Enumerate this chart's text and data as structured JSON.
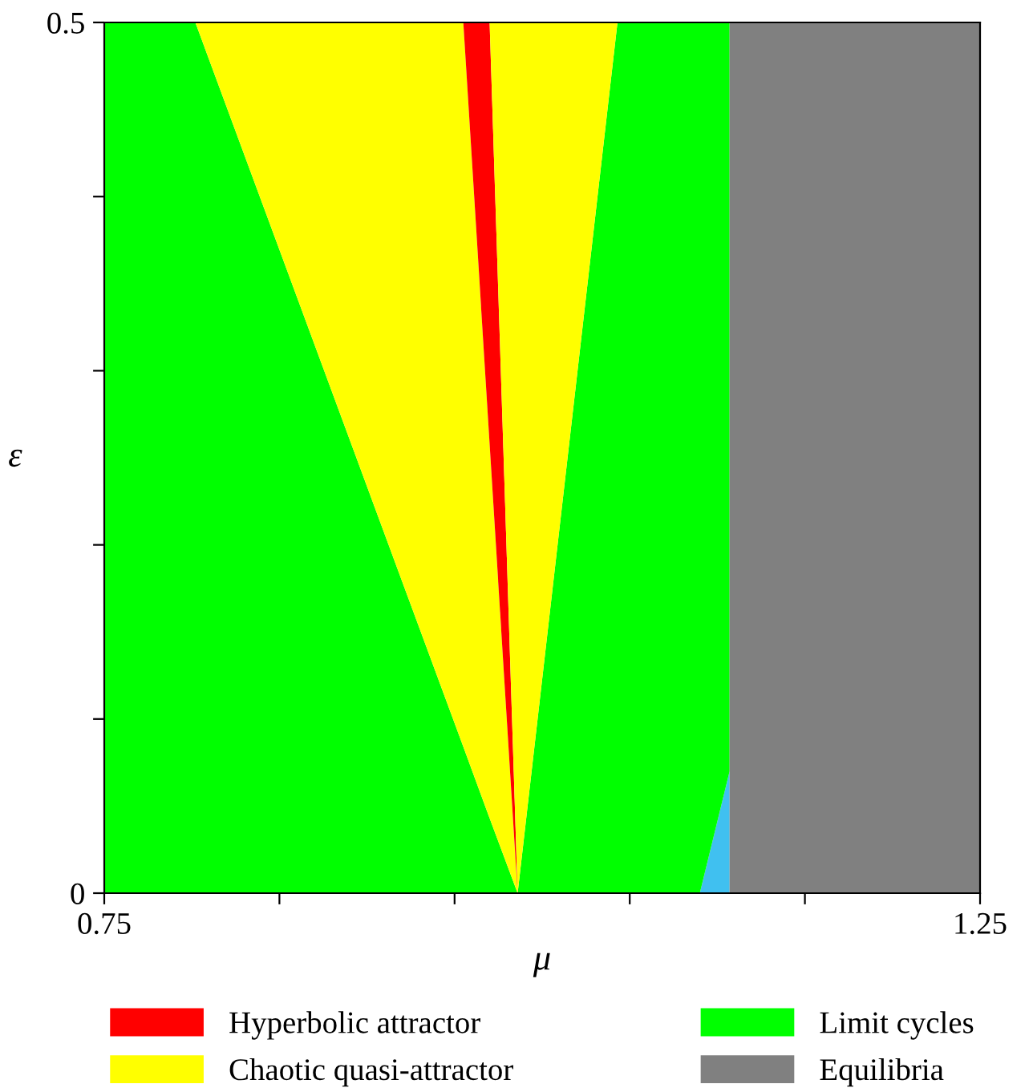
{
  "chart_data": {
    "type": "area",
    "stacked": true,
    "xlabel": "μ",
    "ylabel": "ε",
    "xlim": [
      0.75,
      1.25
    ],
    "ylim": [
      0,
      0.5
    ],
    "xticks": [
      0.75,
      {
        "value": 0.85,
        "label": null
      },
      {
        "value": 0.95,
        "label": null
      },
      {
        "value": 1.05,
        "label": null
      },
      {
        "value": 1.15,
        "label": null
      },
      1.25
    ],
    "yticks": [
      {
        "value": 0,
        "label": "0"
      },
      {
        "value": 0.1,
        "label": null
      },
      {
        "value": 0.2,
        "label": null
      },
      {
        "value": 0.3,
        "label": null
      },
      {
        "value": 0.4,
        "label": null
      },
      0.5
    ],
    "grid": false,
    "legend": "bottom",
    "x": [
      0.75,
      0.802,
      0.955,
      0.97,
      0.986,
      1.043,
      1.09,
      1.107
    ],
    "series": [
      {
        "color": "#40c0f0",
        "values": [
          null,
          null,
          null,
          null,
          null,
          null,
          0,
          0.07
        ]
      },
      {
        "name": "Limit cycles",
        "color": "#00ff00",
        "values": [
          0.5,
          0.5,
          0.084,
          0.043,
          0,
          0.5,
          0.5,
          0.43
        ]
      },
      {
        "name": "Chaotic quasi-attractor",
        "color": "#ffff00",
        "values": [
          null,
          0,
          0.416,
          0.215,
          0,
          null,
          null,
          null
        ]
      },
      {
        "name": "Hyperbolic attractor",
        "color": "#ff0000",
        "values": [
          null,
          null,
          0,
          0.242,
          0,
          null,
          null,
          null
        ]
      },
      {
        "color": "#ffff00",
        "values": [
          null,
          null,
          null,
          0,
          0.5,
          0,
          null,
          null
        ]
      }
    ],
    "bands": [
      {
        "axis": "x",
        "from": 1.107,
        "to": 1.25,
        "label": "Equilibria",
        "color": "#808080"
      }
    ]
  }
}
